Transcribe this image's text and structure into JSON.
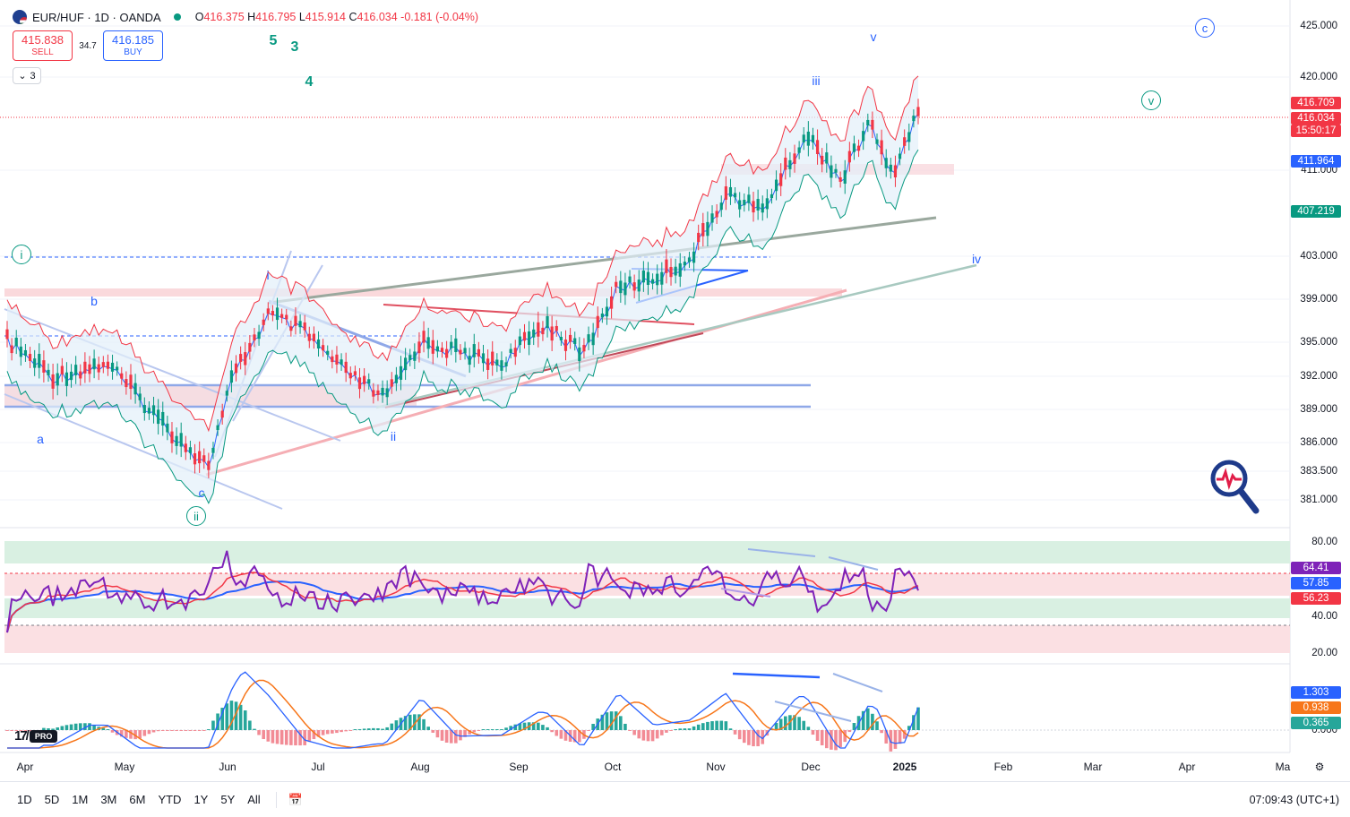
{
  "header": {
    "symbol": "EUR/HUF · 1D · OANDA",
    "open_label": "O",
    "open": "416.375",
    "high_label": "H",
    "high": "416.795",
    "low_label": "L",
    "low": "415.914",
    "close_label": "C",
    "close": "416.034",
    "change": "-0.181 (-0.04%)"
  },
  "trade": {
    "sell_price": "415.838",
    "sell_label": "SELL",
    "spread": "34.7",
    "buy_price": "416.185",
    "buy_label": "BUY"
  },
  "indicators_collapsed": {
    "count": "3"
  },
  "price_axis": [
    "425.000",
    "420.000",
    "403.000",
    "399.000",
    "395.000",
    "392.000",
    "389.000",
    "386.000",
    "383.500",
    "381.000",
    "411.000"
  ],
  "price_tags": {
    "high": "416.709",
    "last": "416.034",
    "countdown": "15:50:17",
    "ma": "411.964",
    "lower_band": "407.219"
  },
  "rsi_axis": [
    "80.00",
    "40.00",
    "20.00"
  ],
  "rsi_tags": {
    "rsi": "64.41",
    "ma_blue": "57.85",
    "ma_red": "56.23"
  },
  "macd_axis": [
    "0.000"
  ],
  "macd_tags": {
    "macd": "1.303",
    "signal": "0.938",
    "hist": "0.365"
  },
  "time_axis": [
    "Apr",
    "May",
    "Jun",
    "Jul",
    "Aug",
    "Sep",
    "Oct",
    "Nov",
    "Dec",
    "2025",
    "Feb",
    "Mar",
    "Apr",
    "Ma"
  ],
  "wave_labels": {
    "w5": "5",
    "w3": "3",
    "w4": "4",
    "i_circ": "i",
    "b": "b",
    "a": "a",
    "c": "c",
    "ii_circ": "ii",
    "i": "i",
    "ii": "ii",
    "iii": "iii",
    "iv": "iv",
    "v": "v",
    "v_circ": "v",
    "c_circ": "c"
  },
  "bottom": {
    "ranges": [
      "1D",
      "5D",
      "1M",
      "3M",
      "6M",
      "YTD",
      "1Y",
      "5Y",
      "All"
    ],
    "clock": "07:09:43 (UTC+1)"
  },
  "branding": {
    "pro": "PRO"
  },
  "colors": {
    "bull": "#089981",
    "bear": "#f23645",
    "accent": "#2962ff",
    "rsi": "#7e22b8",
    "signal": "#f7761a"
  }
}
